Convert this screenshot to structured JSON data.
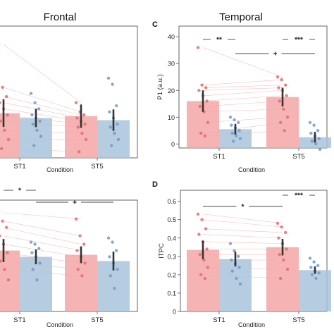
{
  "figure": {
    "title_frontal": "Frontal",
    "title_temporal": "Temporal"
  },
  "colors": {
    "st_red": "#f4a6a6",
    "st_red_point": "#e86a6a",
    "st_blue": "#a9c3dc",
    "st_blue_point": "#6f9bc9",
    "line": "#f2b3b3",
    "error": "#333333",
    "sig_line": "#444444"
  },
  "chart_data": [
    {
      "panel": "",
      "type": "bar",
      "title": "Frontal",
      "xlabel": "Condition",
      "ylabel": "",
      "categories": [
        "ST1",
        "ST5"
      ],
      "series": [
        {
          "values": [
            13.6,
            12.6
          ],
          "errors": [
            4.5,
            3.8
          ],
          "color": "#f4a6a6",
          "points": [
            [
              36,
              22,
              19,
              17,
              15,
              13,
              11,
              8,
              5,
              2
            ],
            [
              17,
              14,
              13,
              12,
              11,
              10,
              9,
              7,
              5,
              1
            ]
          ]
        },
        {
          "values": [
            12.0,
            11.3
          ],
          "errors": [
            3.0,
            3.5
          ],
          "color": "#a9c3dc",
          "points": [
            [
              20,
              17,
              15,
              13,
              12,
              11,
              10,
              8,
              6,
              3
            ],
            [
              25,
              23,
              16,
              14,
              12,
              10,
              9,
              7,
              5,
              3
            ]
          ]
        }
      ],
      "significance": [],
      "ylim": [
        -1,
        42
      ]
    },
    {
      "panel": "C",
      "type": "bar",
      "title": "Temporal",
      "xlabel": "Condition",
      "ylabel": "P1 (a.u.)",
      "categories": [
        "ST1",
        "ST5"
      ],
      "yticks": [
        0,
        10,
        20,
        30,
        40
      ],
      "series": [
        {
          "values": [
            16.0,
            17.5
          ],
          "errors": [
            4.0,
            3.5
          ],
          "color": "#f4a6a6",
          "points": [
            [
              36,
              22,
              21,
              20,
              18,
              16,
              14,
              12,
              8,
              4,
              3
            ],
            [
              25,
              24,
              22,
              21,
              20,
              18,
              16,
              13,
              10,
              8,
              5
            ]
          ]
        },
        {
          "values": [
            5.5,
            2.5
          ],
          "errors": [
            2.0,
            2.0
          ],
          "color": "#a9c3dc",
          "points": [
            [
              10,
              9,
              8,
              7,
              6,
              5,
              4,
              3,
              2,
              1
            ],
            [
              8,
              7,
              5,
              4,
              3,
              2,
              1,
              0,
              -2
            ]
          ]
        }
      ],
      "significance": [
        {
          "label": "**",
          "from": [
            0,
            0
          ],
          "to": [
            0,
            1
          ]
        },
        {
          "label": "***",
          "from": [
            1,
            0
          ],
          "to": [
            1,
            1
          ]
        },
        {
          "label": "+",
          "from": [
            0,
            1
          ],
          "to": [
            1,
            1
          ]
        }
      ],
      "ylim": [
        -1.5,
        44
      ]
    },
    {
      "panel": "",
      "type": "bar",
      "title": "",
      "xlabel": "Condition",
      "ylabel": "",
      "categories": [
        "ST1",
        "ST5"
      ],
      "series": [
        {
          "values": [
            0.34,
            0.32
          ],
          "errors": [
            0.055,
            0.04
          ],
          "color": "#f4a6a6",
          "points": [
            [
              0.52,
              0.48,
              0.45,
              0.41,
              0.37,
              0.33,
              0.29,
              0.25,
              0.2
            ],
            [
              0.49,
              0.41,
              0.37,
              0.34,
              0.31,
              0.28,
              0.25,
              0.22
            ]
          ]
        },
        {
          "values": [
            0.31,
            0.29
          ],
          "errors": [
            0.035,
            0.045
          ],
          "color": "#a9c3dc",
          "points": [
            [
              0.38,
              0.37,
              0.35,
              0.33,
              0.31,
              0.28,
              0.25,
              0.2
            ],
            [
              0.4,
              0.38,
              0.34,
              0.31,
              0.28,
              0.25,
              0.22,
              0.16
            ]
          ]
        }
      ],
      "significance": [
        {
          "label": "*",
          "from": [
            0,
            0
          ],
          "to": [
            0,
            1
          ]
        },
        {
          "label": "+",
          "from": [
            0,
            1
          ],
          "to": [
            1,
            1
          ]
        }
      ],
      "ylim": [
        0.05,
        0.58
      ]
    },
    {
      "panel": "D",
      "type": "bar",
      "title": "",
      "xlabel": "Condition",
      "ylabel": "ITPC",
      "categories": [
        "ST1",
        "ST5"
      ],
      "yticks": [
        0.0,
        0.1,
        0.2,
        0.3,
        0.4,
        0.5,
        0.6
      ],
      "series": [
        {
          "values": [
            0.335,
            0.35
          ],
          "errors": [
            0.05,
            0.045
          ],
          "color": "#f4a6a6",
          "points": [
            [
              0.53,
              0.5,
              0.45,
              0.42,
              0.38,
              0.34,
              0.31,
              0.28,
              0.24,
              0.2,
              0.18
            ],
            [
              0.48,
              0.46,
              0.43,
              0.4,
              0.37,
              0.34,
              0.31,
              0.28,
              0.23,
              0.18
            ]
          ]
        },
        {
          "values": [
            0.285,
            0.225
          ],
          "errors": [
            0.04,
            0.02
          ],
          "color": "#a9c3dc",
          "points": [
            [
              0.37,
              0.33,
              0.3,
              0.28,
              0.26,
              0.24,
              0.22,
              0.18,
              0.15
            ],
            [
              0.29,
              0.27,
              0.25,
              0.24,
              0.22,
              0.21,
              0.2,
              0.18
            ]
          ]
        }
      ],
      "significance": [
        {
          "label": "*",
          "from": [
            0,
            0
          ],
          "to": [
            1,
            0
          ]
        },
        {
          "label": "***",
          "from": [
            1,
            0
          ],
          "to": [
            1,
            1
          ]
        }
      ],
      "ylim": [
        0,
        0.66
      ]
    }
  ]
}
